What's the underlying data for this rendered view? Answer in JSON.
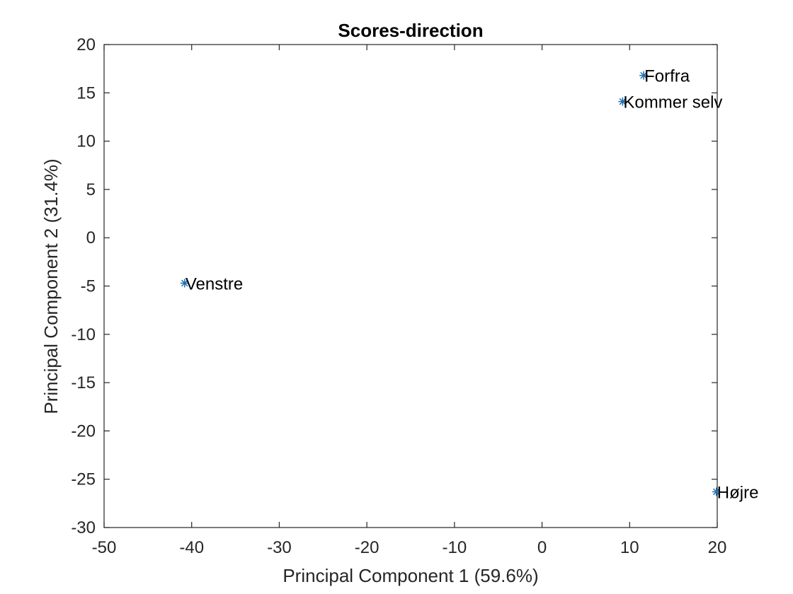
{
  "chart_data": {
    "type": "scatter",
    "title": "Scores-direction",
    "xlabel": "Principal Component 1 (59.6%)",
    "ylabel": "Principal Component 2 (31.4%)",
    "xlim": [
      -50,
      20
    ],
    "ylim": [
      -30,
      20
    ],
    "xticks": [
      -50,
      -40,
      -30,
      -20,
      -10,
      0,
      10,
      20
    ],
    "yticks": [
      -30,
      -25,
      -20,
      -15,
      -10,
      -5,
      0,
      5,
      10,
      15,
      20
    ],
    "grid": false,
    "marker": "asterisk",
    "marker_color": "#1f6fb2",
    "points": [
      {
        "label": "Forfra",
        "x": 11.6,
        "y": 16.8
      },
      {
        "label": "Kommer selv",
        "x": 9.2,
        "y": 14.1
      },
      {
        "label": "Venstre",
        "x": -40.8,
        "y": -4.7
      },
      {
        "label": "Højre",
        "x": 19.9,
        "y": -26.3
      }
    ]
  }
}
